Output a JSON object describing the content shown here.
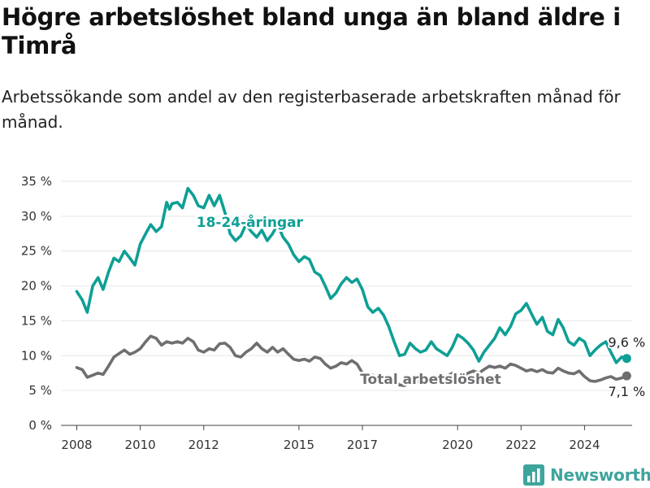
{
  "header": {
    "title": "Högre arbetslöshet bland unga än bland äldre i Timrå",
    "subtitle": "Arbetssökande som andel av den registerbaserade arbetskraften månad för månad."
  },
  "branding": {
    "name": "Newsworthy",
    "logo_icon": "bar-chart-logo-icon"
  },
  "colors": {
    "youth": "#0e9f95",
    "total": "#6f6f72",
    "grid": "#e6e6e6"
  },
  "chart_data": {
    "type": "line",
    "title": "Högre arbetslöshet bland unga än bland äldre i Timrå",
    "subtitle": "Arbetssökande som andel av den registerbaserade arbetskraften månad för månad.",
    "xlabel": "",
    "ylabel": "",
    "xlim": [
      2007.5,
      2025.5
    ],
    "ylim": [
      0,
      35
    ],
    "y_unit": "%",
    "grid": "horizontal",
    "x_ticks": [
      2008,
      2010,
      2012,
      2015,
      2017,
      2020,
      2022,
      2024
    ],
    "x_tick_labels": [
      "2008",
      "2010",
      "2012",
      "2015",
      "2017",
      "2020",
      "2022",
      "2024"
    ],
    "y_ticks": [
      0,
      5,
      10,
      15,
      20,
      25,
      30,
      35
    ],
    "y_tick_labels": [
      "0 %",
      "5 %",
      "10 %",
      "15 %",
      "20 %",
      "25 %",
      "30 %",
      "35 %"
    ],
    "series": [
      {
        "name": "18-24-åringar",
        "color": "#0e9f95",
        "end_label": "9,6 %",
        "points": [
          [
            2008.0,
            19.2
          ],
          [
            2008.17,
            18.0
          ],
          [
            2008.33,
            16.2
          ],
          [
            2008.5,
            20.0
          ],
          [
            2008.67,
            21.2
          ],
          [
            2008.83,
            19.5
          ],
          [
            2009.0,
            22.0
          ],
          [
            2009.17,
            24.0
          ],
          [
            2009.33,
            23.5
          ],
          [
            2009.5,
            25.0
          ],
          [
            2009.67,
            24.0
          ],
          [
            2009.83,
            23.0
          ],
          [
            2010.0,
            26.0
          ],
          [
            2010.17,
            27.5
          ],
          [
            2010.33,
            28.8
          ],
          [
            2010.5,
            27.8
          ],
          [
            2010.67,
            28.5
          ],
          [
            2010.83,
            32.0
          ],
          [
            2010.92,
            31.0
          ],
          [
            2011.0,
            31.8
          ],
          [
            2011.17,
            32.0
          ],
          [
            2011.33,
            31.2
          ],
          [
            2011.5,
            34.0
          ],
          [
            2011.67,
            33.0
          ],
          [
            2011.83,
            31.5
          ],
          [
            2012.0,
            31.2
          ],
          [
            2012.17,
            33.0
          ],
          [
            2012.33,
            31.5
          ],
          [
            2012.5,
            33.0
          ],
          [
            2012.67,
            30.5
          ],
          [
            2012.83,
            27.5
          ],
          [
            2013.0,
            26.5
          ],
          [
            2013.17,
            27.2
          ],
          [
            2013.33,
            28.8
          ],
          [
            2013.5,
            27.8
          ],
          [
            2013.67,
            27.0
          ],
          [
            2013.83,
            28.0
          ],
          [
            2014.0,
            26.5
          ],
          [
            2014.17,
            27.5
          ],
          [
            2014.33,
            28.8
          ],
          [
            2014.5,
            27.0
          ],
          [
            2014.67,
            26.0
          ],
          [
            2014.83,
            24.5
          ],
          [
            2015.0,
            23.5
          ],
          [
            2015.17,
            24.2
          ],
          [
            2015.33,
            23.8
          ],
          [
            2015.5,
            22.0
          ],
          [
            2015.67,
            21.5
          ],
          [
            2015.83,
            20.0
          ],
          [
            2016.0,
            18.2
          ],
          [
            2016.17,
            19.0
          ],
          [
            2016.33,
            20.3
          ],
          [
            2016.5,
            21.2
          ],
          [
            2016.67,
            20.5
          ],
          [
            2016.83,
            21.0
          ],
          [
            2017.0,
            19.5
          ],
          [
            2017.17,
            17.0
          ],
          [
            2017.33,
            16.2
          ],
          [
            2017.5,
            16.8
          ],
          [
            2017.67,
            15.8
          ],
          [
            2017.83,
            14.2
          ],
          [
            2018.0,
            12.0
          ],
          [
            2018.17,
            10.0
          ],
          [
            2018.33,
            10.2
          ],
          [
            2018.5,
            11.8
          ],
          [
            2018.67,
            11.0
          ],
          [
            2018.83,
            10.5
          ],
          [
            2019.0,
            10.8
          ],
          [
            2019.17,
            12.0
          ],
          [
            2019.33,
            11.0
          ],
          [
            2019.5,
            10.5
          ],
          [
            2019.67,
            10.0
          ],
          [
            2019.83,
            11.2
          ],
          [
            2020.0,
            13.0
          ],
          [
            2020.17,
            12.5
          ],
          [
            2020.33,
            11.8
          ],
          [
            2020.5,
            10.8
          ],
          [
            2020.67,
            9.2
          ],
          [
            2020.83,
            10.5
          ],
          [
            2021.0,
            11.5
          ],
          [
            2021.17,
            12.5
          ],
          [
            2021.33,
            14.0
          ],
          [
            2021.5,
            13.0
          ],
          [
            2021.67,
            14.2
          ],
          [
            2021.83,
            16.0
          ],
          [
            2022.0,
            16.5
          ],
          [
            2022.17,
            17.5
          ],
          [
            2022.33,
            16.0
          ],
          [
            2022.5,
            14.5
          ],
          [
            2022.67,
            15.5
          ],
          [
            2022.83,
            13.5
          ],
          [
            2023.0,
            13.0
          ],
          [
            2023.17,
            15.2
          ],
          [
            2023.33,
            14.0
          ],
          [
            2023.5,
            12.0
          ],
          [
            2023.67,
            11.5
          ],
          [
            2023.83,
            12.5
          ],
          [
            2024.0,
            12.0
          ],
          [
            2024.17,
            10.0
          ],
          [
            2024.33,
            10.8
          ],
          [
            2024.5,
            11.5
          ],
          [
            2024.67,
            12.0
          ],
          [
            2024.83,
            10.5
          ],
          [
            2025.0,
            9.0
          ],
          [
            2025.17,
            9.8
          ],
          [
            2025.33,
            9.6
          ]
        ]
      },
      {
        "name": "Total arbetslöshet",
        "color": "#6f6f72",
        "end_label": "7,1 %",
        "points": [
          [
            2008.0,
            8.3
          ],
          [
            2008.17,
            8.0
          ],
          [
            2008.33,
            6.9
          ],
          [
            2008.5,
            7.2
          ],
          [
            2008.67,
            7.5
          ],
          [
            2008.83,
            7.3
          ],
          [
            2009.0,
            8.5
          ],
          [
            2009.17,
            9.8
          ],
          [
            2009.33,
            10.3
          ],
          [
            2009.5,
            10.8
          ],
          [
            2009.67,
            10.2
          ],
          [
            2009.83,
            10.5
          ],
          [
            2010.0,
            11.0
          ],
          [
            2010.17,
            12.0
          ],
          [
            2010.33,
            12.8
          ],
          [
            2010.5,
            12.5
          ],
          [
            2010.67,
            11.5
          ],
          [
            2010.83,
            12.0
          ],
          [
            2011.0,
            11.8
          ],
          [
            2011.17,
            12.0
          ],
          [
            2011.33,
            11.8
          ],
          [
            2011.5,
            12.5
          ],
          [
            2011.67,
            12.0
          ],
          [
            2011.83,
            10.8
          ],
          [
            2012.0,
            10.5
          ],
          [
            2012.17,
            11.0
          ],
          [
            2012.33,
            10.8
          ],
          [
            2012.5,
            11.7
          ],
          [
            2012.67,
            11.8
          ],
          [
            2012.83,
            11.2
          ],
          [
            2013.0,
            10.0
          ],
          [
            2013.17,
            9.8
          ],
          [
            2013.33,
            10.5
          ],
          [
            2013.5,
            11.0
          ],
          [
            2013.67,
            11.8
          ],
          [
            2013.83,
            11.0
          ],
          [
            2014.0,
            10.5
          ],
          [
            2014.17,
            11.2
          ],
          [
            2014.33,
            10.5
          ],
          [
            2014.5,
            11.0
          ],
          [
            2014.67,
            10.2
          ],
          [
            2014.83,
            9.5
          ],
          [
            2015.0,
            9.3
          ],
          [
            2015.17,
            9.5
          ],
          [
            2015.33,
            9.2
          ],
          [
            2015.5,
            9.8
          ],
          [
            2015.67,
            9.6
          ],
          [
            2015.83,
            8.8
          ],
          [
            2016.0,
            8.2
          ],
          [
            2016.17,
            8.5
          ],
          [
            2016.33,
            9.0
          ],
          [
            2016.5,
            8.8
          ],
          [
            2016.67,
            9.3
          ],
          [
            2016.83,
            8.8
          ],
          [
            2017.0,
            7.5
          ],
          [
            2017.17,
            7.0
          ],
          [
            2017.33,
            7.2
          ],
          [
            2017.5,
            6.8
          ],
          [
            2017.67,
            6.5
          ],
          [
            2017.83,
            6.0
          ],
          [
            2018.0,
            6.5
          ],
          [
            2018.17,
            5.8
          ],
          [
            2018.33,
            5.7
          ],
          [
            2018.5,
            6.2
          ],
          [
            2018.67,
            6.5
          ],
          [
            2018.83,
            6.0
          ],
          [
            2019.0,
            6.2
          ],
          [
            2019.17,
            6.8
          ],
          [
            2019.33,
            6.5
          ],
          [
            2019.5,
            6.8
          ],
          [
            2019.67,
            7.0
          ],
          [
            2019.83,
            7.5
          ],
          [
            2020.0,
            7.2
          ],
          [
            2020.17,
            7.0
          ],
          [
            2020.33,
            7.5
          ],
          [
            2020.5,
            7.8
          ],
          [
            2020.67,
            7.5
          ],
          [
            2020.83,
            8.0
          ],
          [
            2021.0,
            8.5
          ],
          [
            2021.17,
            8.3
          ],
          [
            2021.33,
            8.5
          ],
          [
            2021.5,
            8.2
          ],
          [
            2021.67,
            8.8
          ],
          [
            2021.83,
            8.6
          ],
          [
            2022.0,
            8.2
          ],
          [
            2022.17,
            7.8
          ],
          [
            2022.33,
            8.0
          ],
          [
            2022.5,
            7.7
          ],
          [
            2022.67,
            8.0
          ],
          [
            2022.83,
            7.6
          ],
          [
            2023.0,
            7.5
          ],
          [
            2023.17,
            8.2
          ],
          [
            2023.33,
            7.8
          ],
          [
            2023.5,
            7.5
          ],
          [
            2023.67,
            7.4
          ],
          [
            2023.83,
            7.8
          ],
          [
            2024.0,
            7.0
          ],
          [
            2024.17,
            6.4
          ],
          [
            2024.33,
            6.3
          ],
          [
            2024.5,
            6.5
          ],
          [
            2024.67,
            6.8
          ],
          [
            2024.83,
            7.0
          ],
          [
            2025.0,
            6.6
          ],
          [
            2025.17,
            6.8
          ],
          [
            2025.33,
            7.1
          ]
        ]
      }
    ]
  }
}
